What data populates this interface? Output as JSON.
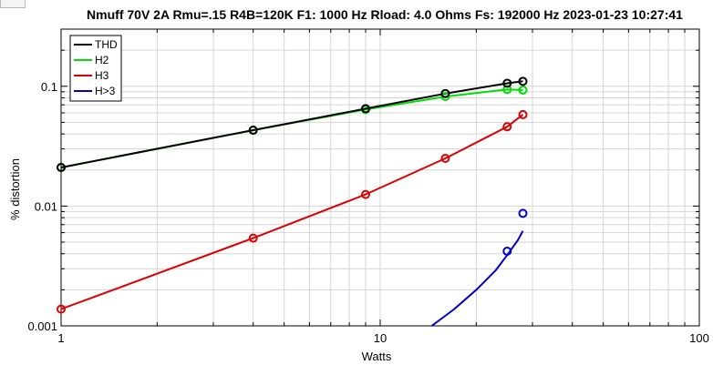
{
  "chart_data": {
    "type": "line",
    "title": "Nmuff 70V 2A Rmu=.15 R4B=120K F1: 1000 Hz   Rload: 4.0 Ohms   Fs: 192000 Hz  2023-01-23 10:27:41",
    "xlabel": "Watts",
    "ylabel": "% distortion",
    "xscale": "log",
    "yscale": "log",
    "xlim": [
      1,
      100
    ],
    "ylim": [
      0.001,
      0.3
    ],
    "xticks": [
      1,
      10,
      100
    ],
    "xtick_labels": [
      "1",
      "10",
      "100"
    ],
    "yticks": [
      0.001,
      0.01,
      0.1
    ],
    "ytick_labels": [
      "0.001",
      "0.01",
      "0.1"
    ],
    "grid": true,
    "legend_position": "top-left",
    "series": [
      {
        "name": "THD",
        "color": "#000000",
        "points_x": [
          1,
          4,
          9,
          16,
          25,
          28
        ],
        "points_y": [
          0.021,
          0.043,
          0.065,
          0.087,
          0.106,
          0.11
        ],
        "line_x": [
          1,
          4,
          9,
          16,
          25,
          28
        ],
        "line_y": [
          0.021,
          0.043,
          0.065,
          0.087,
          0.106,
          0.11
        ]
      },
      {
        "name": "H2",
        "color": "#00dd00",
        "points_x": [
          1,
          4,
          9,
          16,
          25,
          28
        ],
        "points_y": [
          0.021,
          0.043,
          0.064,
          0.082,
          0.094,
          0.093
        ],
        "line_x": [
          1,
          4,
          9,
          16,
          25,
          28
        ],
        "line_y": [
          0.021,
          0.043,
          0.064,
          0.082,
          0.094,
          0.093
        ]
      },
      {
        "name": "H3",
        "color": "#dd0000",
        "points_x": [
          1,
          4,
          9,
          16,
          25,
          28
        ],
        "points_y": [
          0.00138,
          0.0054,
          0.0125,
          0.025,
          0.046,
          0.058
        ],
        "line_x": [
          1,
          4,
          9,
          16,
          25,
          28
        ],
        "line_y": [
          0.00138,
          0.0054,
          0.0125,
          0.025,
          0.046,
          0.058
        ]
      },
      {
        "name": "H>3",
        "color": "#0000cc",
        "points_x": [
          25,
          28
        ],
        "points_y": [
          0.0042,
          0.0087
        ],
        "line_x": [
          14.5,
          17,
          20,
          23,
          25,
          27,
          28
        ],
        "line_y": [
          0.001,
          0.00137,
          0.002,
          0.0029,
          0.0039,
          0.0052,
          0.0062
        ]
      }
    ]
  }
}
